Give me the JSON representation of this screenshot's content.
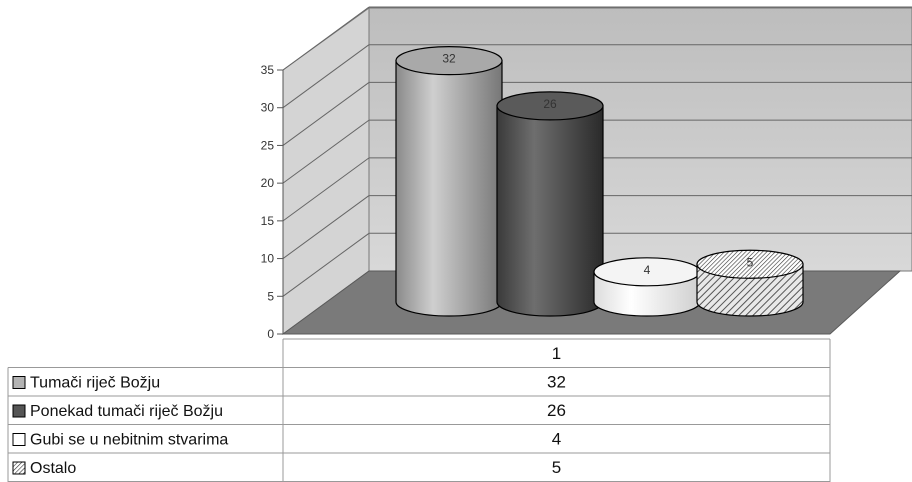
{
  "chart_data": {
    "type": "bar",
    "variant": "3d-cylinder",
    "categories": [
      "1"
    ],
    "series": [
      {
        "name": "Tumači riječ Božju",
        "values": [
          32
        ],
        "color": "#b3b3b3",
        "pattern": "solid"
      },
      {
        "name": "Ponekad tumači riječ Božju",
        "values": [
          26
        ],
        "color": "#555555",
        "pattern": "solid"
      },
      {
        "name": "Gubi se u nebitnim stvarima",
        "values": [
          4
        ],
        "color": "#ffffff",
        "pattern": "solid"
      },
      {
        "name": "Ostalo",
        "values": [
          5
        ],
        "color": "#e6e6e6",
        "pattern": "hatched"
      }
    ],
    "yticks": [
      "0",
      "5",
      "10",
      "15",
      "20",
      "25",
      "30",
      "35"
    ],
    "ylim": [
      0,
      35
    ],
    "grid": true,
    "legend": "data-table"
  }
}
